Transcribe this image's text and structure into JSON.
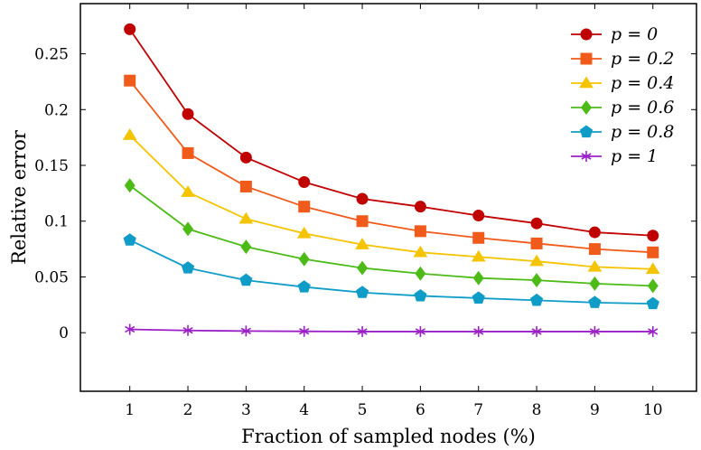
{
  "chart_data": {
    "type": "line",
    "title": "",
    "xlabel": "Fraction of sampled nodes (%)",
    "ylabel": "Relative error",
    "x": [
      1,
      2,
      3,
      4,
      5,
      6,
      7,
      8,
      9,
      10
    ],
    "xlim": [
      0.15,
      10.75
    ],
    "ylim": [
      -0.0525,
      0.295
    ],
    "xticks": [
      "1",
      "2",
      "3",
      "4",
      "5",
      "6",
      "7",
      "8",
      "9",
      "10"
    ],
    "yticks": [
      {
        "value": 0,
        "label": "0"
      },
      {
        "value": 0.05,
        "label": "0.05"
      },
      {
        "value": 0.1,
        "label": "0.1"
      },
      {
        "value": 0.15,
        "label": "0.15"
      },
      {
        "value": 0.2,
        "label": "0.2"
      },
      {
        "value": 0.25,
        "label": "0.25"
      }
    ],
    "grid": false,
    "legend_position": "top-right",
    "series": [
      {
        "name": "p = 0",
        "color": "#c00000",
        "marker": "circle",
        "values": [
          0.272,
          0.196,
          0.157,
          0.135,
          0.12,
          0.113,
          0.105,
          0.098,
          0.09,
          0.087
        ]
      },
      {
        "name": "p = 0.2",
        "color": "#f05a1a",
        "marker": "square",
        "values": [
          0.226,
          0.161,
          0.131,
          0.113,
          0.1,
          0.091,
          0.085,
          0.08,
          0.075,
          0.072
        ]
      },
      {
        "name": "p = 0.4",
        "color": "#f5c400",
        "marker": "triangle",
        "values": [
          0.177,
          0.126,
          0.102,
          0.089,
          0.079,
          0.072,
          0.068,
          0.064,
          0.059,
          0.057
        ]
      },
      {
        "name": "p = 0.6",
        "color": "#4cbb17",
        "marker": "diamond",
        "values": [
          0.132,
          0.093,
          0.077,
          0.066,
          0.058,
          0.053,
          0.049,
          0.047,
          0.044,
          0.042
        ]
      },
      {
        "name": "p = 0.8",
        "color": "#0f9dc8",
        "marker": "pentagon",
        "values": [
          0.083,
          0.058,
          0.047,
          0.041,
          0.036,
          0.033,
          0.031,
          0.029,
          0.027,
          0.026
        ]
      },
      {
        "name": "p = 1",
        "color": "#9b1fc9",
        "marker": "asterisk",
        "values": [
          0.003,
          0.002,
          0.0015,
          0.0012,
          0.001,
          0.001,
          0.001,
          0.001,
          0.001,
          0.001
        ]
      }
    ]
  }
}
